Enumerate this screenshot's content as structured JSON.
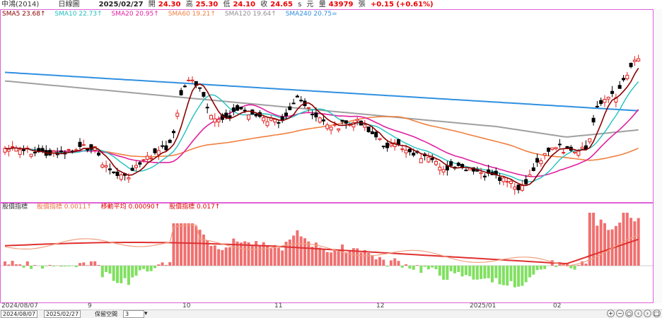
{
  "header": {
    "stock_name": "中鴻(2014)",
    "chart_type": "日線圖",
    "date": "2025/02/27",
    "open_label": "開",
    "open": "24.30",
    "high_label": "高",
    "high": "25.30",
    "low_label": "低",
    "low": "24.10",
    "close_label": "收",
    "close": "24.65",
    "close_suffix": "s",
    "unit_label": "元",
    "volume_label": "量",
    "volume": "43979",
    "volume_unit": "張",
    "change": "+0.15 (+0.61%)"
  },
  "sma_legend": [
    {
      "label": "SMA5 23.68↑",
      "color": "#8b0000"
    },
    {
      "label": "SMA10 22.73↑",
      "color": "#20c0c0"
    },
    {
      "label": "SMA20 20.95↑",
      "color": "#e020a0"
    },
    {
      "label": "SMA60 19.21↑",
      "color": "#f08040"
    },
    {
      "label": "SMA120 19.64↑",
      "color": "#909090"
    },
    {
      "label": "SMA240 20.75=",
      "color": "#3090e0"
    }
  ],
  "indicator_legend": [
    {
      "label": "股價指標",
      "color": "#333333"
    },
    {
      "label": "股價指標 0.0011↑",
      "color": "#f07040"
    },
    {
      "label": "移動平均 0.00090↑",
      "color": "#e00000"
    },
    {
      "label": "股價指標 0.017↑",
      "color": "#e00000"
    }
  ],
  "x_axis": [
    {
      "label": "2024/08/07"
    },
    {
      "label": "9"
    },
    {
      "label": "10"
    },
    {
      "label": "11"
    },
    {
      "label": "12"
    },
    {
      "label": "2025/01"
    },
    {
      "label": "02"
    }
  ],
  "bottom": {
    "start_date": "2024/08/07",
    "end_date": "2025/02/27",
    "keep_label": "保留空間",
    "keep_value": "3"
  },
  "colors": {
    "up_candle": "#e02020",
    "down_candle": "#000000",
    "hist_pos": "#f07070",
    "hist_neg": "#80e060",
    "border": "#e060d8"
  }
}
